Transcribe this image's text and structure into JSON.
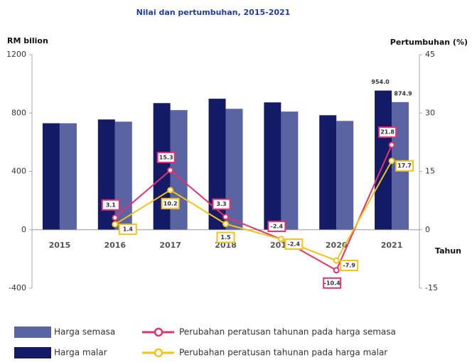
{
  "chart_data": {
    "type": "bar",
    "title": "Nilai dan pertumbuhan, 2015-2021",
    "y_label": "RM bilion",
    "y2_label": "Pertumbuhan (%)",
    "x_label": "Tahun",
    "categories": [
      "2015",
      "2016",
      "2017",
      "2018",
      "2019",
      "2020",
      "2021"
    ],
    "series": [
      {
        "name": "Harga semasa",
        "type": "bar",
        "color": "#5b64a3",
        "values": [
          730,
          741,
          820,
          829,
          810,
          746,
          874.9
        ],
        "value_labels": [
          null,
          null,
          null,
          null,
          null,
          null,
          "874.9"
        ]
      },
      {
        "name": "Harga malar",
        "type": "bar",
        "color": "#141a66",
        "values": [
          730,
          756,
          868,
          898,
          873,
          785,
          954
        ],
        "value_labels": [
          null,
          null,
          null,
          null,
          null,
          null,
          "954.0"
        ]
      },
      {
        "name": "Perubahan peratusan tahunan pada harga semasa",
        "type": "line",
        "axis": "y2",
        "color": "#e0336f",
        "values": [
          null,
          3.1,
          15.3,
          3.3,
          -2.4,
          -10.4,
          21.8
        ]
      },
      {
        "name": "Perubahan peratusan tahunan pada harga malar",
        "type": "line",
        "axis": "y2",
        "color": "#f2c318",
        "values": [
          null,
          1.4,
          10.2,
          1.5,
          -2.4,
          -7.9,
          17.7
        ]
      }
    ],
    "ylim": [
      -400,
      1200
    ],
    "yticks": [
      -400,
      0,
      400,
      800,
      1200
    ],
    "y2lim": [
      -15,
      45
    ],
    "y2ticks": [
      -15,
      0,
      15,
      30,
      45
    ]
  }
}
